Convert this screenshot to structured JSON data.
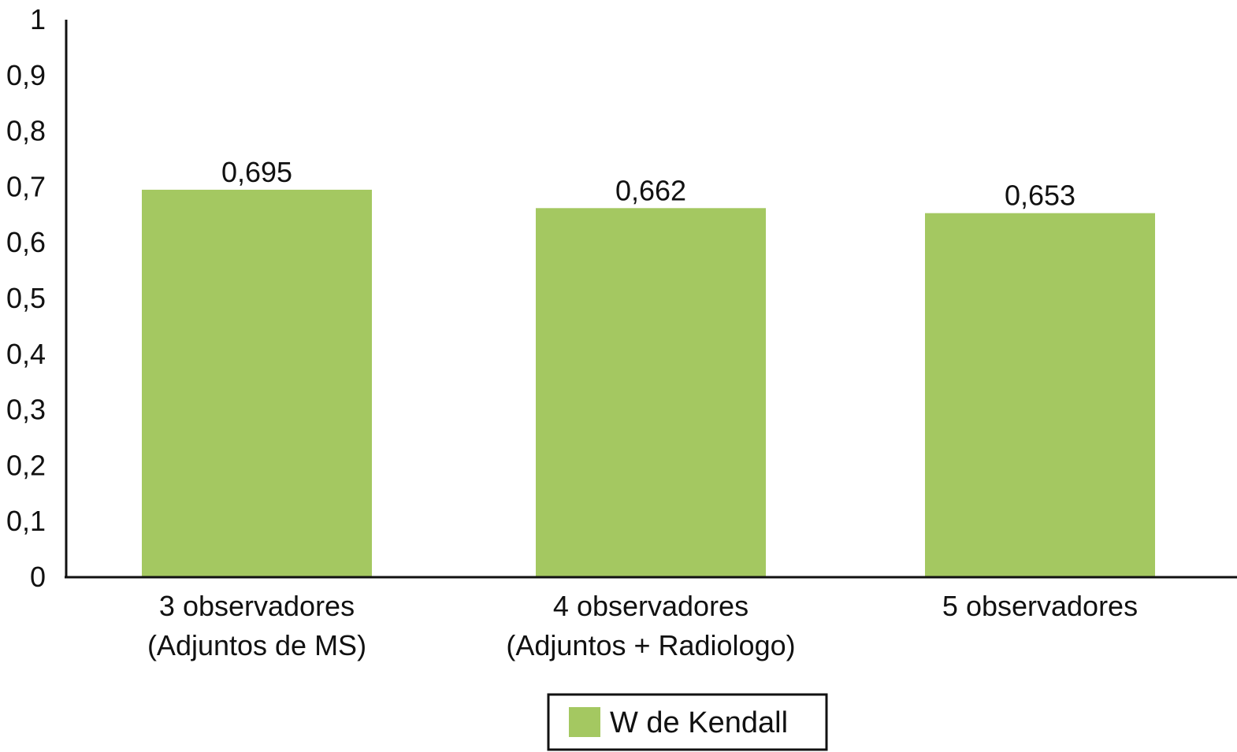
{
  "chart_data": {
    "type": "bar",
    "categories": [
      [
        "3 observadores",
        "(Adjuntos de MS)"
      ],
      [
        "4 observadores",
        "(Adjuntos + Radiologo)"
      ],
      [
        "5 observadores"
      ]
    ],
    "series": [
      {
        "name": "W de Kendall",
        "values": [
          0.695,
          0.662,
          0.653
        ],
        "value_labels": [
          "0,695",
          "0,662",
          "0,653"
        ],
        "color": "#a4c861"
      }
    ],
    "ylim": [
      0,
      1
    ],
    "yticks": [
      0,
      0.1,
      0.2,
      0.3,
      0.4,
      0.5,
      0.6,
      0.7,
      0.8,
      0.9,
      1
    ],
    "ytick_labels": [
      "0",
      "0,1",
      "0,2",
      "0,3",
      "0,4",
      "0,5",
      "0,6",
      "0,7",
      "0,8",
      "0,9",
      "1"
    ],
    "grid": false,
    "legend_position": "bottom-center",
    "title": "",
    "xlabel": "",
    "ylabel": ""
  }
}
